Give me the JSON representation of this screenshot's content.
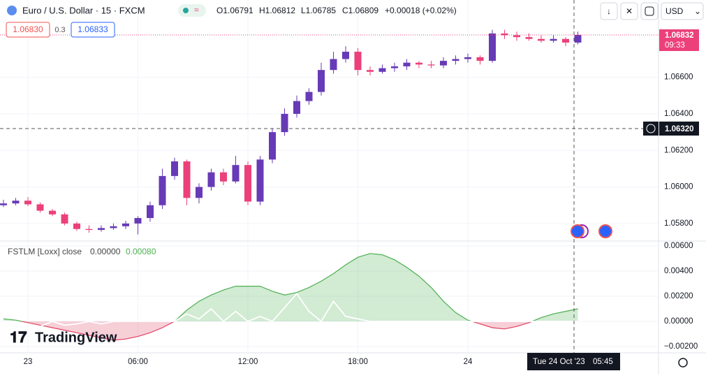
{
  "header": {
    "symbol": "Euro / U.S. Dollar · 15 · FXCM",
    "quote": [
      "O1.06791",
      "H1.06812",
      "L1.06785",
      "C1.06809",
      "+0.00018 (+0.02%)"
    ],
    "sell": "1.06830",
    "spread": "0.3",
    "buy": "1.06833",
    "currency": "USD"
  },
  "brand": "TradingView",
  "crosshair": {
    "price": "1.06320",
    "time": "Tue 24 Oct '23",
    "clock": "05:45"
  },
  "last_price": {
    "price": "1.06832",
    "countdown": "09:33"
  },
  "chart_data": [
    {
      "type": "candlestick",
      "up_color": "#673ab7",
      "down_color": "#ec407a",
      "categories": [
        null,
        null,
        "23",
        null,
        null,
        null,
        null,
        null,
        null,
        null,
        null,
        "06:00",
        null,
        null,
        null,
        null,
        null,
        null,
        null,
        null,
        "12:00",
        null,
        null,
        null,
        null,
        null,
        null,
        null,
        null,
        "18:00",
        null,
        null,
        null,
        null,
        null,
        null,
        null,
        null,
        "24",
        null,
        null,
        null,
        null,
        null,
        null,
        null,
        null,
        null
      ],
      "ohlc": [
        [
          1.059,
          1.0593,
          1.0589,
          1.0591
        ],
        [
          1.0591,
          1.0594,
          1.059,
          1.05925
        ],
        [
          1.05925,
          1.05945,
          1.05895,
          1.05905
        ],
        [
          1.05905,
          1.05915,
          1.0586,
          1.0587
        ],
        [
          1.0587,
          1.0588,
          1.0584,
          1.0585
        ],
        [
          1.0585,
          1.0586,
          1.0579,
          1.058
        ],
        [
          1.058,
          1.0581,
          1.0576,
          1.0577
        ],
        [
          1.0577,
          1.0579,
          1.0575,
          1.05765
        ],
        [
          1.05765,
          1.0579,
          1.05755,
          1.05775
        ],
        [
          1.05775,
          1.058,
          1.05765,
          1.05785
        ],
        [
          1.05785,
          1.05815,
          1.0577,
          1.058
        ],
        [
          1.058,
          1.0584,
          1.0574,
          1.0583
        ],
        [
          1.0583,
          1.0592,
          1.0581,
          1.059
        ],
        [
          1.059,
          1.061,
          1.0588,
          1.0606
        ],
        [
          1.0606,
          1.0616,
          1.0604,
          1.0614
        ],
        [
          1.0614,
          1.0615,
          1.059,
          1.0594
        ],
        [
          1.0594,
          1.0602,
          1.0591,
          1.06
        ],
        [
          1.06,
          1.061,
          1.0598,
          1.0608
        ],
        [
          1.0608,
          1.061,
          1.0601,
          1.0603
        ],
        [
          1.0603,
          1.0617,
          1.0602,
          1.0612
        ],
        [
          1.0612,
          1.0614,
          1.059,
          1.0592
        ],
        [
          1.0592,
          1.0617,
          1.059,
          1.0615
        ],
        [
          1.0615,
          1.0632,
          1.0613,
          1.063
        ],
        [
          1.063,
          1.0643,
          1.0628,
          1.064
        ],
        [
          1.064,
          1.065,
          1.0638,
          1.0647
        ],
        [
          1.0647,
          1.0654,
          1.0645,
          1.0652
        ],
        [
          1.0652,
          1.0668,
          1.065,
          1.0664
        ],
        [
          1.0664,
          1.0674,
          1.0662,
          1.067
        ],
        [
          1.067,
          1.0677,
          1.0668,
          1.0674
        ],
        [
          1.0674,
          1.0676,
          1.0661,
          1.0664
        ],
        [
          1.0664,
          1.0666,
          1.0661,
          1.0663
        ],
        [
          1.0663,
          1.0667,
          1.0662,
          1.0665
        ],
        [
          1.0665,
          1.0668,
          1.0663,
          1.0666
        ],
        [
          1.0666,
          1.067,
          1.0664,
          1.0668
        ],
        [
          1.0668,
          1.0669,
          1.0665,
          1.0667
        ],
        [
          1.0667,
          1.0669,
          1.0665,
          1.06665
        ],
        [
          1.06665,
          1.0671,
          1.0665,
          1.0669
        ],
        [
          1.0669,
          1.0672,
          1.0667,
          1.067
        ],
        [
          1.067,
          1.0673,
          1.0668,
          1.0671
        ],
        [
          1.0671,
          1.0672,
          1.0667,
          1.0669
        ],
        [
          1.0669,
          1.0686,
          1.0668,
          1.0684
        ],
        [
          1.0684,
          1.0686,
          1.0681,
          1.0683
        ],
        [
          1.0683,
          1.0685,
          1.068,
          1.0682
        ],
        [
          1.0682,
          1.0684,
          1.068,
          1.0681
        ],
        [
          1.0681,
          1.0683,
          1.0679,
          1.068
        ],
        [
          1.068,
          1.0683,
          1.0679,
          1.0681
        ],
        [
          1.0681,
          1.0682,
          1.0677,
          1.0679
        ],
        [
          1.0679,
          1.0685,
          1.0678,
          1.06832
        ]
      ],
      "ylim": [
        1.05704,
        1.07023
      ],
      "yticks": [
        {
          "value": 1.058,
          "label": "1.05800"
        },
        {
          "value": 1.06,
          "label": "1.06000"
        },
        {
          "value": 1.062,
          "label": "1.06200"
        },
        {
          "value": 1.064,
          "label": "1.06400"
        },
        {
          "value": 1.066,
          "label": "1.06600"
        }
      ],
      "grid": true
    },
    {
      "type": "area",
      "title": "FSTLM [Loxx] close",
      "legend_values": [
        "0.00000",
        "0.00080"
      ],
      "positive_color": "#4caf50",
      "negative_color": "#e0405f",
      "series": [
        {
          "color": "#4caf50",
          "values": [
            0.0002,
            0.0001,
            -0.0001,
            -0.0003,
            -0.0005,
            -0.0007,
            -0.0009,
            -0.0011,
            -0.0013,
            -0.0015,
            -0.0014,
            -0.0012,
            -0.0009,
            -0.0005,
            0,
            0.0009,
            0.0016,
            0.0021,
            0.0025,
            0.0028,
            0.0028,
            0.0028,
            0.0024,
            0.0021,
            0.0023,
            0.0027,
            0.0032,
            0.0038,
            0.0045,
            0.0051,
            0.0054,
            0.0053,
            0.0049,
            0.0043,
            0.0036,
            0.0027,
            0.0016,
            0.0007,
            0.0001,
            -0.0002,
            -0.0005,
            -0.0006,
            -0.0004,
            -0.0001,
            0.0003,
            0.0006,
            0.0008,
            0.001
          ]
        },
        {
          "color": "#ffffff",
          "values": [
            0,
            0,
            -0.0002,
            -0.0004,
            0,
            -0.0003,
            -0.0002,
            0,
            -0.0002,
            0,
            0,
            0,
            0,
            0,
            0,
            0.0006,
            0.0002,
            0.001,
            0,
            0.0008,
            0,
            0.0004,
            0,
            0.0011,
            0.0022,
            0.0008,
            0,
            0.0016,
            0.0004,
            0.0002,
            0,
            0,
            0,
            0,
            0,
            0,
            0,
            0,
            0,
            0,
            0,
            0,
            0,
            0,
            0,
            0,
            0,
            0
          ]
        }
      ],
      "ylim": [
        -0.0025,
        0.00639
      ],
      "yticks": [
        {
          "value": -0.002,
          "label": "−0.00200"
        },
        {
          "value": 0,
          "label": "0.00000"
        },
        {
          "value": 0.002,
          "label": "0.00200"
        },
        {
          "value": 0.004,
          "label": "0.00400"
        },
        {
          "value": 0.006,
          "label": "0.00600"
        }
      ],
      "grid": true
    }
  ]
}
